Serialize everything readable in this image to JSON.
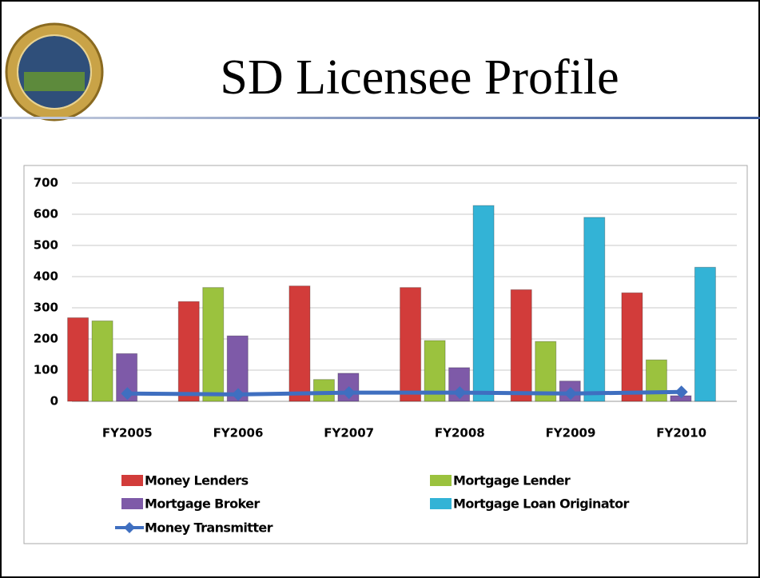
{
  "chart_data": {
    "type": "bar",
    "title": "SD Licensee Profile",
    "categories": [
      "FY2005",
      "FY2006",
      "FY2007",
      "FY2008",
      "FY2009",
      "FY2010"
    ],
    "series": [
      {
        "name": "Money Lenders",
        "color": "#d23c3a",
        "values": [
          268,
          320,
          370,
          365,
          358,
          348
        ]
      },
      {
        "name": "Mortgage Lender",
        "color": "#9bc23e",
        "values": [
          258,
          365,
          70,
          195,
          192,
          133
        ]
      },
      {
        "name": "Mortgage Broker",
        "color": "#7e5aa8",
        "values": [
          153,
          210,
          90,
          108,
          65,
          18
        ]
      },
      {
        "name": "Mortgage Loan Originator",
        "color": "#33b3d6",
        "values": [
          null,
          null,
          null,
          628,
          590,
          430
        ]
      },
      {
        "name": "Money Transmitter",
        "color": "#3f6fc0",
        "type": "line",
        "values": [
          25,
          22,
          28,
          28,
          25,
          30
        ]
      }
    ],
    "ylim": [
      0,
      700
    ],
    "yticks": [
      0,
      100,
      200,
      300,
      400,
      500,
      600,
      700
    ],
    "grid": true
  }
}
